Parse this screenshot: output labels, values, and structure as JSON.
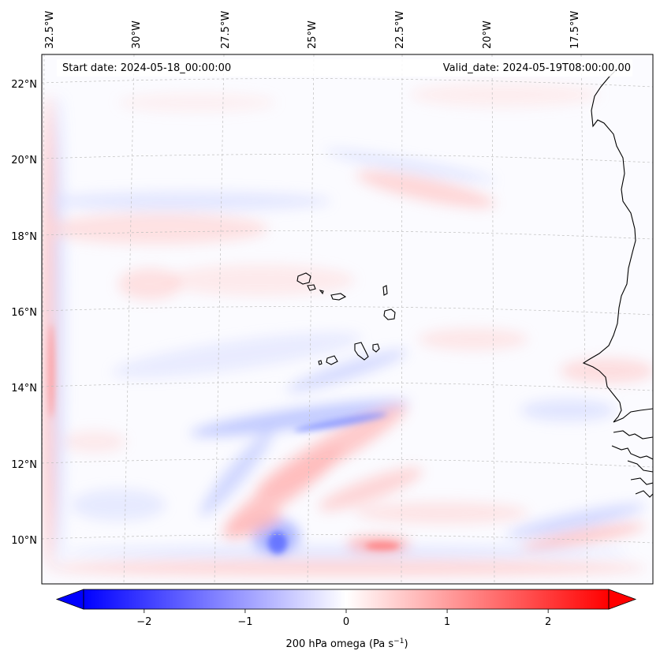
{
  "header": {
    "start_date": "Start date: 2024-05-18_00:00:00",
    "valid_date": "Valid_date: 2024-05-19T08:00:00.00"
  },
  "map": {
    "lon_labels": [
      "32.5°W",
      "30°W",
      "27.5°W",
      "25°W",
      "22.5°W",
      "20°W",
      "17.5°W"
    ],
    "lat_labels": [
      "22°N",
      "20°N",
      "18°N",
      "16°N",
      "14°N",
      "12°N",
      "10°N"
    ],
    "grid": true,
    "coastline_color": "#000000"
  },
  "colorbar": {
    "tick_labels": [
      "−2",
      "−1",
      "0",
      "1",
      "2"
    ],
    "tick_values": [
      -2,
      -1,
      0,
      1,
      2
    ],
    "min": -2.6,
    "max": 2.6,
    "extend": "both",
    "colormap": "bwr",
    "label_main": "200 hPa omega (Pa s",
    "label_exp": "−1",
    "label_close": ")"
  },
  "colors": {
    "negative": "#0000ff",
    "neutral": "#ffffff",
    "positive": "#ff0000"
  }
}
